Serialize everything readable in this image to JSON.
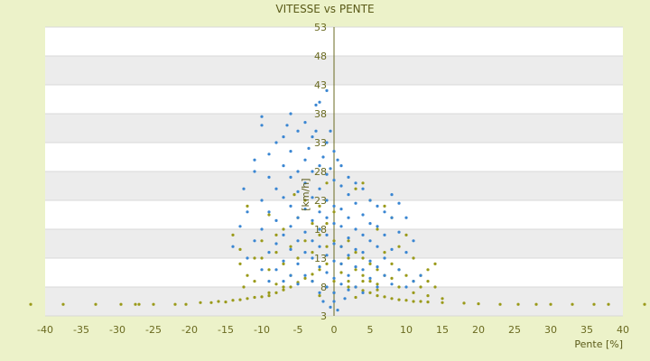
{
  "chart_data": {
    "type": "scatter",
    "title": "VITESSE vs PENTE",
    "xlabel": "Pente [%]",
    "ylabel": "[km/h]",
    "xlim": [
      -40,
      40
    ],
    "ylim": [
      3,
      53
    ],
    "x_ticks": [
      "-40",
      "-35",
      "-30",
      "-25",
      "-20",
      "-15",
      "-10",
      "-5",
      "0",
      "5",
      "10",
      "15",
      "20",
      "25",
      "30",
      "35",
      "40"
    ],
    "y_ticks": [
      "3",
      "8",
      "13",
      "18",
      "23",
      "28",
      "33",
      "38",
      "43",
      "48",
      "53"
    ],
    "grid": true,
    "band_colors": [
      "#ffffff",
      "#ececec"
    ],
    "series": [
      {
        "color": "#9a9a1a",
        "points": [
          [
            -42,
            5
          ],
          [
            -37.5,
            5
          ],
          [
            -33,
            5
          ],
          [
            -29.5,
            5
          ],
          [
            -27.5,
            5
          ],
          [
            -27,
            5
          ],
          [
            -25,
            5
          ],
          [
            -22,
            5
          ],
          [
            -20.5,
            5
          ],
          [
            -18.5,
            5.3
          ],
          [
            -17,
            5.3
          ],
          [
            -16,
            5.5
          ],
          [
            -15,
            5.4
          ],
          [
            -14,
            5.7
          ],
          [
            -13,
            5.8
          ],
          [
            -12,
            6
          ],
          [
            -11,
            6.2
          ],
          [
            -10,
            6.3
          ],
          [
            -9,
            6.5
          ],
          [
            -8,
            7
          ],
          [
            -7,
            7.5
          ],
          [
            -6,
            8
          ],
          [
            -5,
            8.8
          ],
          [
            -4,
            9.5
          ],
          [
            -3,
            10.2
          ],
          [
            -2,
            11
          ],
          [
            -1,
            12
          ],
          [
            1,
            10.5
          ],
          [
            2,
            9
          ],
          [
            3,
            8
          ],
          [
            4,
            7.4
          ],
          [
            5,
            7
          ],
          [
            6,
            6.5
          ],
          [
            7,
            6.3
          ],
          [
            8,
            6
          ],
          [
            9,
            5.8
          ],
          [
            10,
            5.7
          ],
          [
            11,
            5.5
          ],
          [
            12,
            5.5
          ],
          [
            13,
            5.4
          ],
          [
            15,
            5.3
          ],
          [
            18,
            5.2
          ],
          [
            20,
            5.1
          ],
          [
            23,
            5
          ],
          [
            25.5,
            5
          ],
          [
            28,
            5
          ],
          [
            30,
            5
          ],
          [
            33,
            5
          ],
          [
            36,
            5
          ],
          [
            38,
            5
          ],
          [
            43,
            5
          ],
          [
            -14,
            17
          ],
          [
            -13,
            14.5
          ],
          [
            -13,
            12
          ],
          [
            -12,
            22
          ],
          [
            -11,
            9
          ],
          [
            -11,
            13
          ],
          [
            -10,
            16
          ],
          [
            -9,
            20.5
          ],
          [
            -9,
            11
          ],
          [
            -8,
            14
          ],
          [
            -8,
            8.5
          ],
          [
            -7,
            18
          ],
          [
            -7,
            12
          ],
          [
            -6,
            10
          ],
          [
            -6,
            15
          ],
          [
            -5,
            20
          ],
          [
            -5,
            13
          ],
          [
            -4,
            16
          ],
          [
            -4,
            23
          ],
          [
            -3,
            14
          ],
          [
            -3,
            19
          ],
          [
            -2,
            17
          ],
          [
            -2,
            22
          ],
          [
            -1,
            15
          ],
          [
            -1,
            19
          ],
          [
            0,
            16
          ],
          [
            0,
            21
          ],
          [
            1,
            15
          ],
          [
            1,
            12
          ],
          [
            2,
            16
          ],
          [
            2,
            13
          ],
          [
            3,
            14
          ],
          [
            3,
            11
          ],
          [
            4,
            13
          ],
          [
            4,
            10
          ],
          [
            5,
            12
          ],
          [
            5,
            9
          ],
          [
            6,
            11
          ],
          [
            6,
            8.5
          ],
          [
            7,
            10
          ],
          [
            7,
            14
          ],
          [
            8,
            12
          ],
          [
            8,
            9.5
          ],
          [
            9,
            11
          ],
          [
            9,
            15
          ],
          [
            10,
            10
          ],
          [
            10,
            17
          ],
          [
            11,
            9
          ],
          [
            11,
            13
          ],
          [
            12,
            10
          ],
          [
            12,
            8
          ],
          [
            13,
            9
          ],
          [
            13,
            11
          ],
          [
            14,
            8
          ],
          [
            14,
            12
          ],
          [
            15,
            6
          ],
          [
            8,
            20
          ],
          [
            7,
            22
          ],
          [
            6,
            18
          ],
          [
            5,
            23
          ],
          [
            4,
            26
          ],
          [
            3,
            25
          ],
          [
            -1,
            26
          ],
          [
            -5.5,
            24
          ],
          [
            -8,
            17
          ],
          [
            -10,
            13
          ],
          [
            -12,
            10
          ],
          [
            -12.5,
            8
          ],
          [
            -9,
            7
          ],
          [
            -7,
            8
          ],
          [
            -3,
            9
          ],
          [
            0,
            9
          ],
          [
            2,
            8
          ],
          [
            4,
            9
          ],
          [
            6,
            7.5
          ],
          [
            9,
            8
          ],
          [
            11,
            7
          ],
          [
            13,
            6.5
          ],
          [
            3,
            6.2
          ],
          [
            -2,
            6.5
          ],
          [
            0,
            7
          ]
        ]
      },
      {
        "color": "#3a86d2",
        "points": [
          [
            -1,
            42
          ],
          [
            -2,
            40
          ],
          [
            -2.5,
            39.5
          ],
          [
            -6,
            38
          ],
          [
            -10,
            37.5
          ],
          [
            -10,
            36
          ],
          [
            -4,
            36.5
          ],
          [
            -5,
            35
          ],
          [
            -7,
            34
          ],
          [
            -3,
            34
          ],
          [
            -8,
            33
          ],
          [
            -1,
            33
          ],
          [
            -9,
            31
          ],
          [
            -6,
            31.5
          ],
          [
            -4,
            30
          ],
          [
            -11,
            30
          ],
          [
            -2,
            29
          ],
          [
            -7,
            29
          ],
          [
            -5,
            28
          ],
          [
            0,
            31.5
          ],
          [
            1,
            29
          ],
          [
            -3,
            28
          ],
          [
            2,
            27
          ],
          [
            -6,
            27
          ],
          [
            -9,
            27
          ],
          [
            -1,
            27.5
          ],
          [
            3,
            26
          ],
          [
            -4,
            26
          ],
          [
            -8,
            25
          ],
          [
            0,
            26.5
          ],
          [
            1,
            25.5
          ],
          [
            -2,
            25
          ],
          [
            4,
            25
          ],
          [
            -5,
            24.5
          ],
          [
            -7,
            23.5
          ],
          [
            -10,
            23
          ],
          [
            -3,
            23.5
          ],
          [
            2,
            24
          ],
          [
            5,
            23
          ],
          [
            -1,
            23
          ],
          [
            6,
            22
          ],
          [
            -6,
            22
          ],
          [
            -9,
            21
          ],
          [
            -12,
            21
          ],
          [
            -4,
            21.5
          ],
          [
            3,
            22.5
          ],
          [
            7,
            21
          ],
          [
            0,
            22
          ],
          [
            1,
            21.5
          ],
          [
            -2,
            21
          ],
          [
            8,
            20
          ],
          [
            -5,
            20
          ],
          [
            -8,
            19.5
          ],
          [
            4,
            20.5
          ],
          [
            -1,
            20
          ],
          [
            2,
            20
          ],
          [
            -3,
            19.5
          ],
          [
            5,
            19
          ],
          [
            6,
            18.5
          ],
          [
            -6,
            18.5
          ],
          [
            -10,
            18
          ],
          [
            -13,
            18.5
          ],
          [
            0,
            19
          ],
          [
            1,
            18.5
          ],
          [
            -2,
            18
          ],
          [
            3,
            18
          ],
          [
            7,
            17
          ],
          [
            -4,
            17.5
          ],
          [
            -7,
            17
          ],
          [
            9,
            17.5
          ],
          [
            4,
            17
          ],
          [
            -1,
            17
          ],
          [
            2,
            16.5
          ],
          [
            -3,
            16
          ],
          [
            5,
            16
          ],
          [
            -5,
            16
          ],
          [
            -8,
            15.5
          ],
          [
            -11,
            16
          ],
          [
            6,
            15
          ],
          [
            0,
            15.5
          ],
          [
            1,
            15
          ],
          [
            -2,
            15
          ],
          [
            3,
            14.5
          ],
          [
            8,
            14.5
          ],
          [
            -6,
            14.5
          ],
          [
            -9,
            14
          ],
          [
            4,
            14
          ],
          [
            -4,
            14
          ],
          [
            -1,
            13.5
          ],
          [
            2,
            13.5
          ],
          [
            7,
            13
          ],
          [
            10,
            14
          ],
          [
            -3,
            13
          ],
          [
            5,
            12.5
          ],
          [
            -7,
            12.5
          ],
          [
            0,
            12.5
          ],
          [
            1,
            12
          ],
          [
            -5,
            12
          ],
          [
            -12,
            13
          ],
          [
            3,
            11.5
          ],
          [
            6,
            11.5
          ],
          [
            -2,
            11.5
          ],
          [
            9,
            11
          ],
          [
            -8,
            11
          ],
          [
            4,
            11
          ],
          [
            -1,
            10.5
          ],
          [
            2,
            10
          ],
          [
            -4,
            10
          ],
          [
            7,
            10
          ],
          [
            -6,
            10
          ],
          [
            0,
            9.5
          ],
          [
            5,
            9.5
          ],
          [
            -3,
            9
          ],
          [
            1,
            8.5
          ],
          [
            -1,
            8
          ],
          [
            3,
            8
          ],
          [
            -5,
            8.5
          ],
          [
            8,
            8.5
          ],
          [
            0,
            7
          ],
          [
            2,
            7.5
          ],
          [
            -2,
            7
          ],
          [
            11,
            9
          ],
          [
            4,
            7
          ],
          [
            6,
            8
          ],
          [
            -7,
            9
          ],
          [
            -10,
            11
          ],
          [
            12,
            10
          ],
          [
            10,
            8
          ],
          [
            -9,
            9
          ],
          [
            0,
            5.5
          ],
          [
            -0.5,
            4.5
          ],
          [
            1.5,
            6
          ],
          [
            -1.5,
            5.5
          ],
          [
            0.5,
            4
          ],
          [
            8,
            24
          ],
          [
            -11,
            28
          ],
          [
            -12.5,
            25
          ],
          [
            9,
            22.5
          ],
          [
            10,
            20
          ],
          [
            -14,
            15
          ],
          [
            11,
            16
          ],
          [
            -0.5,
            28.5
          ],
          [
            -1.5,
            30.5
          ],
          [
            0.5,
            30
          ],
          [
            -3.5,
            32
          ],
          [
            -2.5,
            35
          ],
          [
            -6.5,
            36
          ],
          [
            -0.5,
            35
          ]
        ]
      }
    ]
  }
}
